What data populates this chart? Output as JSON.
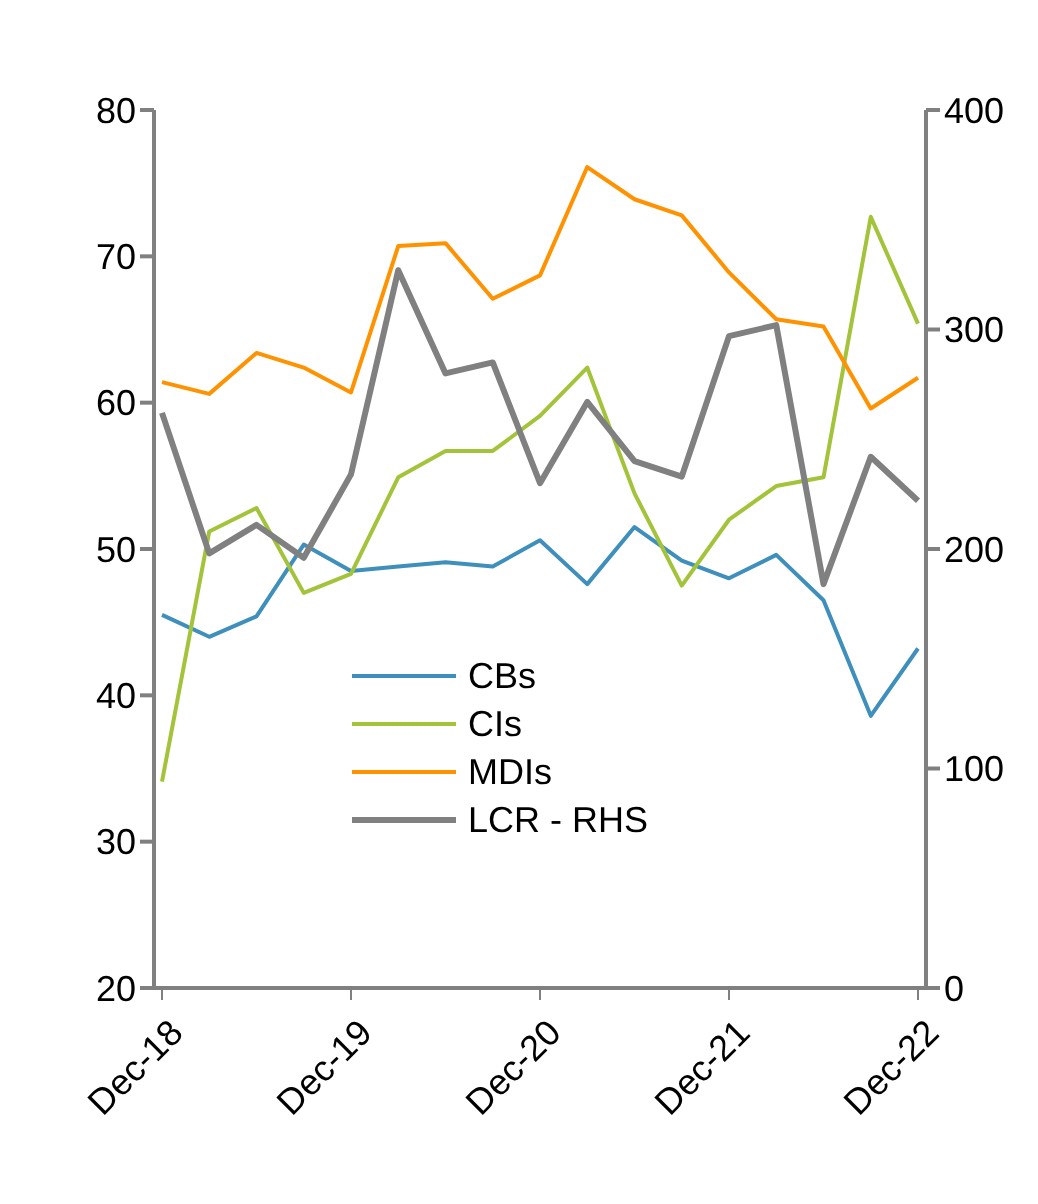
{
  "chart_data": {
    "type": "line",
    "categories": [
      "Dec-18",
      null,
      null,
      null,
      "Dec-19",
      null,
      null,
      null,
      "Dec-20",
      null,
      null,
      null,
      "Dec-21",
      null,
      null,
      null,
      "Dec-22"
    ],
    "series": [
      {
        "name": "CBs",
        "color": "#3f8fbd",
        "values": [
          45.5,
          44.0,
          45.4,
          50.3,
          48.5,
          48.8,
          49.1,
          48.8,
          50.6,
          47.6,
          51.5,
          49.2,
          48.0,
          49.6,
          46.5,
          38.6,
          43.2
        ]
      },
      {
        "name": "CIs",
        "color": "#a3c43a",
        "values": [
          34.1,
          51.2,
          52.8,
          47.0,
          48.3,
          54.9,
          56.7,
          56.7,
          59.1,
          62.4,
          53.8,
          47.5,
          52.0,
          54.3,
          54.9,
          72.7,
          65.4
        ]
      },
      {
        "name": "MDIs",
        "color": "#ff9200",
        "values": [
          61.4,
          60.6,
          63.4,
          62.4,
          60.7,
          70.7,
          70.9,
          67.1,
          68.7,
          76.1,
          73.9,
          72.8,
          68.9,
          65.7,
          65.2,
          59.6,
          61.7
        ]
      },
      {
        "name": "LCR - RHS",
        "color": "#808080",
        "axis": "y2",
        "values": [
          262,
          198,
          211,
          196,
          234,
          327,
          280,
          285,
          230,
          267,
          240,
          233,
          297,
          302,
          184,
          242,
          222
        ]
      }
    ],
    "ylim": [
      20,
      80
    ],
    "yticks": [
      20,
      30,
      40,
      50,
      60,
      70,
      80
    ],
    "y2lim": [
      0,
      400
    ],
    "y2ticks": [
      0,
      100,
      200,
      300,
      400
    ],
    "grid": false,
    "legend": "bottom",
    "marker": "none",
    "line_style": "solid"
  }
}
